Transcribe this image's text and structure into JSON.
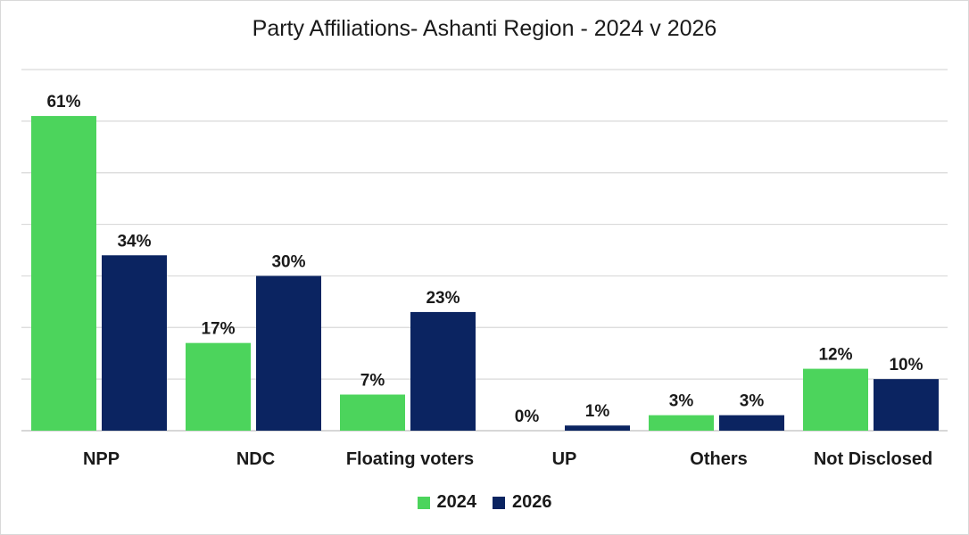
{
  "chart_data": {
    "type": "bar",
    "title": "Party Affiliations- Ashanti Region - 2024 v 2026",
    "categories": [
      "NPP",
      "NDC",
      "Floating voters",
      "UP",
      "Others",
      "Not Disclosed"
    ],
    "series": [
      {
        "name": "2024",
        "color": "#4cd45c",
        "values": [
          61,
          17,
          7,
          0,
          3,
          12
        ],
        "labels": [
          "61%",
          "17%",
          "7%",
          "0%",
          "3%",
          "12%"
        ]
      },
      {
        "name": "2026",
        "color": "#0b2461",
        "values": [
          34,
          30,
          23,
          1,
          3,
          10
        ],
        "labels": [
          "34%",
          "30%",
          "23%",
          "1%",
          "3%",
          "10%"
        ]
      }
    ],
    "ylim": [
      0,
      70
    ],
    "grid": true,
    "legend_position": "bottom"
  }
}
